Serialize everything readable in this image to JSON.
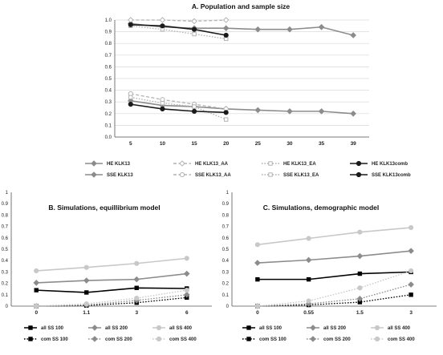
{
  "chart_data": [
    {
      "panel": "A",
      "type": "line",
      "title": "A. Population and sample size",
      "categories": [
        "5",
        "10",
        "15",
        "20",
        "25",
        "30",
        "35",
        "39"
      ],
      "ylim": [
        0,
        1.0
      ],
      "yticks": [
        "0.0",
        "0.1",
        "0.2",
        "0.3",
        "0.4",
        "0.5",
        "0.6",
        "0.7",
        "0.8",
        "0.9",
        "1.0"
      ],
      "legend_position": "bottom",
      "series": [
        {
          "name": "HE KLK13",
          "color": "#8c8c8c",
          "dash": "solid",
          "marker": "diamond",
          "values": [
            0.97,
            0.94,
            0.93,
            0.93,
            0.92,
            0.92,
            0.94,
            0.87
          ]
        },
        {
          "name": "HE KLK13_AA",
          "color": "#b3b3b3",
          "dash": "dash",
          "marker": "diamond-open",
          "values": [
            1.0,
            1.0,
            0.99,
            1.0,
            null,
            null,
            null,
            null
          ]
        },
        {
          "name": "HE KLK13_EA",
          "color": "#b3b3b3",
          "dash": "dot",
          "marker": "square-open",
          "values": [
            0.95,
            0.92,
            0.88,
            0.84,
            null,
            null,
            null,
            null
          ]
        },
        {
          "name": "HE KLK13comb",
          "color": "#1a1a1a",
          "dash": "solid",
          "marker": "circle",
          "values": [
            0.96,
            0.95,
            0.92,
            0.87,
            null,
            null,
            null,
            null
          ]
        },
        {
          "name": "SSE KLK13",
          "color": "#8c8c8c",
          "dash": "solid",
          "marker": "diamond",
          "values": [
            0.31,
            0.27,
            0.26,
            0.24,
            0.23,
            0.22,
            0.22,
            0.2
          ]
        },
        {
          "name": "SSE KLK13_AA",
          "color": "#b3b3b3",
          "dash": "dash",
          "marker": "circle-open",
          "values": [
            0.37,
            0.32,
            0.28,
            0.24,
            null,
            null,
            null,
            null
          ]
        },
        {
          "name": "SSE KLK13_EA",
          "color": "#b3b3b3",
          "dash": "dot",
          "marker": "square-open",
          "values": [
            0.34,
            0.29,
            0.26,
            0.15,
            null,
            null,
            null,
            null
          ]
        },
        {
          "name": "SSE KLK13comb",
          "color": "#1a1a1a",
          "dash": "solid",
          "marker": "circle",
          "values": [
            0.28,
            0.24,
            0.22,
            0.21,
            null,
            null,
            null,
            null
          ]
        }
      ]
    },
    {
      "panel": "B",
      "type": "line",
      "title": "B. Simulations, equillibrium model",
      "categories": [
        "0",
        "1.1",
        "3",
        "6"
      ],
      "ylim": [
        0,
        1.0
      ],
      "yticks": [
        "0",
        "0.1",
        "0.2",
        "0.3",
        "0.4",
        "0.5",
        "0.6",
        "0.7",
        "0.8",
        "0.9",
        "1"
      ],
      "legend_position": "bottom",
      "series": [
        {
          "name": "all SS 100",
          "color": "#000000",
          "dash": "solid",
          "marker": "square",
          "values": [
            0.14,
            0.12,
            0.16,
            0.155
          ]
        },
        {
          "name": "all SS 200",
          "color": "#8c8c8c",
          "dash": "solid",
          "marker": "diamond",
          "values": [
            0.205,
            0.225,
            0.235,
            0.285
          ]
        },
        {
          "name": "all SS 400",
          "color": "#c8c8c8",
          "dash": "solid",
          "marker": "circle",
          "values": [
            0.31,
            0.34,
            0.375,
            0.42
          ]
        },
        {
          "name": "com SS 100",
          "color": "#000000",
          "dash": "dot",
          "marker": "square",
          "values": [
            0.0,
            0.005,
            0.03,
            0.075
          ]
        },
        {
          "name": "com SS 200",
          "color": "#8c8c8c",
          "dash": "dot",
          "marker": "diamond",
          "values": [
            0.0,
            0.01,
            0.05,
            0.1
          ]
        },
        {
          "name": "com SS 400",
          "color": "#c8c8c8",
          "dash": "dot",
          "marker": "circle",
          "values": [
            0.0,
            0.02,
            0.07,
            0.14
          ]
        }
      ]
    },
    {
      "panel": "C",
      "type": "line",
      "title": "C. Simulations, demographic model",
      "categories": [
        "0",
        "0.55",
        "1.5",
        "3"
      ],
      "ylim": [
        0,
        1.0
      ],
      "yticks": [
        "0",
        "0.1",
        "0.2",
        "0.3",
        "0.4",
        "0.5",
        "0.6",
        "0.7",
        "0.8",
        "0.9",
        "1"
      ],
      "legend_position": "bottom",
      "series": [
        {
          "name": "all SS 100",
          "color": "#000000",
          "dash": "solid",
          "marker": "square",
          "values": [
            0.235,
            0.235,
            0.285,
            0.3
          ]
        },
        {
          "name": "all SS 200",
          "color": "#8c8c8c",
          "dash": "solid",
          "marker": "diamond",
          "values": [
            0.38,
            0.405,
            0.44,
            0.485
          ]
        },
        {
          "name": "all SS 400",
          "color": "#c8c8c8",
          "dash": "solid",
          "marker": "circle",
          "values": [
            0.54,
            0.595,
            0.65,
            0.69
          ]
        },
        {
          "name": "com SS 100",
          "color": "#000000",
          "dash": "dot",
          "marker": "square",
          "values": [
            0.0,
            0.01,
            0.035,
            0.1
          ]
        },
        {
          "name": "com SS 200",
          "color": "#8c8c8c",
          "dash": "dot",
          "marker": "diamond",
          "values": [
            0.0,
            0.02,
            0.065,
            0.19
          ]
        },
        {
          "name": "com SS 400",
          "color": "#c8c8c8",
          "dash": "dot",
          "marker": "circle",
          "values": [
            0.0,
            0.045,
            0.16,
            0.31
          ]
        }
      ]
    }
  ]
}
